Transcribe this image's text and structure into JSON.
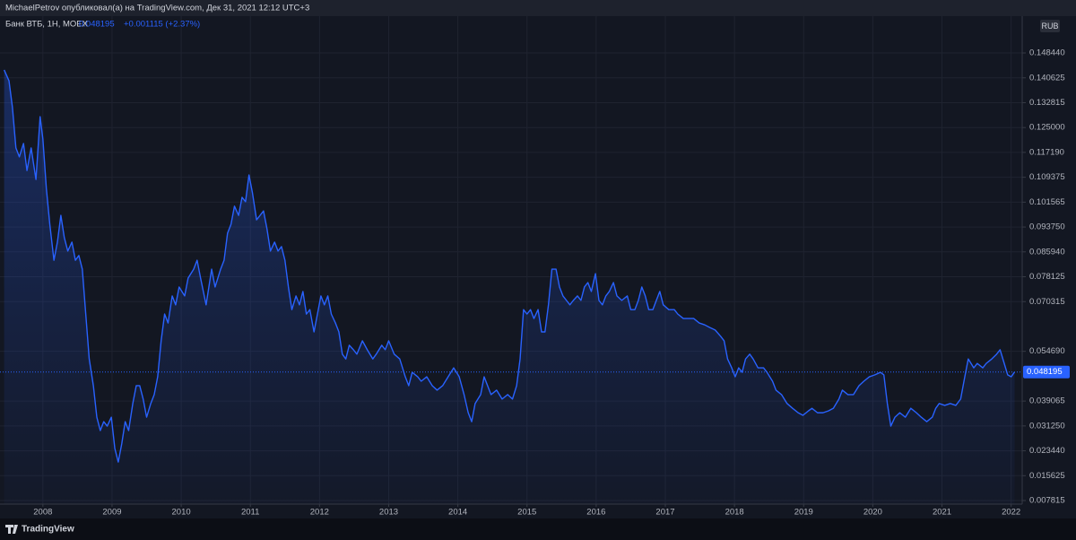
{
  "header": {
    "title": "MichaelPetrov опубликовал(а) на TradingView.com, Дек 31, 2021 12:12 UTC+3"
  },
  "footer": {
    "brand": "TradingView"
  },
  "chart_data": {
    "type": "line",
    "currency": "RUB",
    "last_price": 0.048195,
    "change_text": "+0.001115 (+2.37%)",
    "xlim": [
      2007.38,
      2022.16
    ],
    "xticks": [
      2008,
      2009,
      2010,
      2011,
      2012,
      2013,
      2014,
      2015,
      2016,
      2017,
      2018,
      2019,
      2020,
      2021,
      2022
    ],
    "ylim": [
      0.00669,
      0.16
    ],
    "yticks": [
      0.007815,
      0.015625,
      {
        "value": 0.02344,
        "label": "0.023440"
      },
      {
        "value": 0.03125,
        "label": "0.031250"
      },
      0.039065,
      {
        "value": 0.05469,
        "label": "0.054690"
      },
      0.070315,
      0.078125,
      {
        "value": 0.08594,
        "label": "0.085940"
      },
      {
        "value": 0.09375,
        "label": "0.093750"
      },
      0.101565,
      0.109375,
      {
        "value": 0.11719,
        "label": "0.117190"
      },
      {
        "value": 0.125,
        "label": "0.125000"
      },
      0.132815,
      0.140625,
      {
        "value": 0.14844,
        "label": "0.148440"
      }
    ],
    "grid": true,
    "x": [
      2007.44,
      2007.51,
      2007.56,
      2007.61,
      2007.66,
      2007.72,
      2007.77,
      2007.83,
      2007.9,
      2007.96,
      2008.0,
      2008.05,
      2008.1,
      2008.16,
      2008.21,
      2008.26,
      2008.31,
      2008.36,
      2008.42,
      2008.47,
      2008.52,
      2008.57,
      2008.62,
      2008.67,
      2008.73,
      2008.78,
      2008.83,
      2008.88,
      2008.93,
      2008.99,
      2009.04,
      2009.09,
      2009.14,
      2009.19,
      2009.24,
      2009.3,
      2009.35,
      2009.4,
      2009.45,
      2009.5,
      2009.56,
      2009.61,
      2009.66,
      2009.71,
      2009.76,
      2009.81,
      2009.87,
      2009.92,
      2009.97,
      2010.05,
      2010.1,
      2010.18,
      2010.23,
      2010.28,
      2010.36,
      2010.44,
      2010.49,
      2010.57,
      2010.62,
      2010.67,
      2010.72,
      2010.77,
      2010.83,
      2010.88,
      2010.93,
      2010.98,
      2011.03,
      2011.09,
      2011.14,
      2011.19,
      2011.24,
      2011.29,
      2011.35,
      2011.4,
      2011.45,
      2011.5,
      2011.55,
      2011.6,
      2011.66,
      2011.71,
      2011.76,
      2011.81,
      2011.86,
      2011.92,
      2011.97,
      2012.02,
      2012.07,
      2012.12,
      2012.17,
      2012.23,
      2012.28,
      2012.33,
      2012.38,
      2012.43,
      2012.49,
      2012.54,
      2012.62,
      2012.69,
      2012.77,
      2012.82,
      2012.9,
      2012.95,
      2013.0,
      2013.08,
      2013.16,
      2013.24,
      2013.29,
      2013.34,
      2013.42,
      2013.47,
      2013.55,
      2013.63,
      2013.7,
      2013.78,
      2013.86,
      2013.94,
      2014.02,
      2014.09,
      2014.15,
      2014.2,
      2014.25,
      2014.33,
      2014.38,
      2014.43,
      2014.48,
      2014.56,
      2014.64,
      2014.72,
      2014.79,
      2014.85,
      2014.9,
      2014.95,
      2015.0,
      2015.05,
      2015.1,
      2015.16,
      2015.21,
      2015.26,
      2015.31,
      2015.36,
      2015.42,
      2015.47,
      2015.52,
      2015.57,
      2015.62,
      2015.67,
      2015.73,
      2015.78,
      2015.83,
      2015.88,
      2015.93,
      2015.99,
      2016.04,
      2016.09,
      2016.14,
      2016.19,
      2016.25,
      2016.3,
      2016.37,
      2016.45,
      2016.5,
      2016.56,
      2016.61,
      2016.66,
      2016.71,
      2016.76,
      2016.82,
      2016.87,
      2016.92,
      2016.97,
      2017.05,
      2017.13,
      2017.18,
      2017.26,
      2017.33,
      2017.41,
      2017.49,
      2017.57,
      2017.64,
      2017.72,
      2017.8,
      2017.85,
      2017.9,
      2017.96,
      2018.01,
      2018.06,
      2018.11,
      2018.16,
      2018.22,
      2018.27,
      2018.34,
      2018.42,
      2018.47,
      2018.55,
      2018.6,
      2018.68,
      2018.76,
      2018.84,
      2018.92,
      2018.99,
      2019.07,
      2019.12,
      2019.2,
      2019.28,
      2019.36,
      2019.43,
      2019.51,
      2019.56,
      2019.64,
      2019.72,
      2019.8,
      2019.87,
      2019.95,
      2020.03,
      2020.11,
      2020.16,
      2020.21,
      2020.26,
      2020.32,
      2020.39,
      2020.47,
      2020.55,
      2020.63,
      2020.7,
      2020.78,
      2020.86,
      2020.91,
      2020.96,
      2021.04,
      2021.12,
      2021.2,
      2021.27,
      2021.33,
      2021.38,
      2021.46,
      2021.51,
      2021.59,
      2021.64,
      2021.72,
      2021.79,
      2021.84,
      2021.9,
      2021.95,
      2022.0,
      2022.05
    ],
    "series": [
      {
        "name": "Банк ВТБ, 1Н, MOEX",
        "color": "#2962ff",
        "values": [
          0.1431,
          0.1397,
          0.1313,
          0.1186,
          0.1158,
          0.12,
          0.1115,
          0.1186,
          0.1087,
          0.1284,
          0.1214,
          0.1059,
          0.0946,
          0.0833,
          0.089,
          0.0974,
          0.0904,
          0.0862,
          0.089,
          0.0833,
          0.0848,
          0.0805,
          0.0664,
          0.0523,
          0.0439,
          0.034,
          0.0298,
          0.0326,
          0.0312,
          0.034,
          0.0242,
          0.0199,
          0.0256,
          0.0326,
          0.0298,
          0.0383,
          0.0439,
          0.0439,
          0.0397,
          0.034,
          0.0383,
          0.0411,
          0.0467,
          0.058,
          0.0664,
          0.0636,
          0.0721,
          0.0693,
          0.0749,
          0.0721,
          0.0777,
          0.0805,
          0.0833,
          0.0777,
          0.0693,
          0.0805,
          0.0749,
          0.0805,
          0.0833,
          0.0918,
          0.0946,
          0.1003,
          0.0974,
          0.1031,
          0.1017,
          0.1101,
          0.1045,
          0.096,
          0.0974,
          0.0988,
          0.0932,
          0.0862,
          0.089,
          0.0862,
          0.0876,
          0.0833,
          0.0749,
          0.0678,
          0.0721,
          0.0693,
          0.0735,
          0.0664,
          0.0678,
          0.0608,
          0.0664,
          0.0721,
          0.0693,
          0.0721,
          0.0664,
          0.0636,
          0.0608,
          0.0538,
          0.0523,
          0.0566,
          0.0552,
          0.0538,
          0.058,
          0.0552,
          0.0523,
          0.0538,
          0.0566,
          0.0552,
          0.058,
          0.0538,
          0.0523,
          0.0467,
          0.0439,
          0.0481,
          0.0467,
          0.0453,
          0.0467,
          0.0439,
          0.0425,
          0.0439,
          0.0467,
          0.0495,
          0.0467,
          0.0411,
          0.0354,
          0.0326,
          0.0383,
          0.0411,
          0.0467,
          0.0439,
          0.0411,
          0.0425,
          0.0397,
          0.0411,
          0.0397,
          0.0439,
          0.0523,
          0.0678,
          0.0664,
          0.0678,
          0.065,
          0.0678,
          0.0608,
          0.0608,
          0.0693,
          0.0805,
          0.0805,
          0.0749,
          0.0721,
          0.0707,
          0.0693,
          0.0707,
          0.0721,
          0.0707,
          0.0749,
          0.0763,
          0.0735,
          0.0791,
          0.0707,
          0.0693,
          0.0721,
          0.0735,
          0.0763,
          0.0721,
          0.0707,
          0.0721,
          0.0678,
          0.0678,
          0.0707,
          0.0749,
          0.0721,
          0.0678,
          0.0678,
          0.0707,
          0.0735,
          0.0693,
          0.0678,
          0.0678,
          0.0664,
          0.065,
          0.065,
          0.065,
          0.0636,
          0.063,
          0.0622,
          0.0614,
          0.0594,
          0.058,
          0.0523,
          0.0495,
          0.0467,
          0.0495,
          0.0481,
          0.0523,
          0.0538,
          0.0523,
          0.0495,
          0.0495,
          0.0481,
          0.0453,
          0.0425,
          0.0411,
          0.0383,
          0.0368,
          0.0354,
          0.0346,
          0.036,
          0.0368,
          0.0354,
          0.0354,
          0.036,
          0.0368,
          0.0397,
          0.0425,
          0.0411,
          0.0411,
          0.0439,
          0.0453,
          0.0467,
          0.0473,
          0.0481,
          0.0473,
          0.0383,
          0.0312,
          0.034,
          0.0354,
          0.034,
          0.0368,
          0.0354,
          0.034,
          0.0326,
          0.034,
          0.0368,
          0.0383,
          0.0377,
          0.0383,
          0.0377,
          0.0397,
          0.0467,
          0.0523,
          0.0495,
          0.0509,
          0.0495,
          0.0509,
          0.0523,
          0.0538,
          0.0552,
          0.0509,
          0.0473,
          0.0467,
          0.0482
        ]
      }
    ]
  }
}
